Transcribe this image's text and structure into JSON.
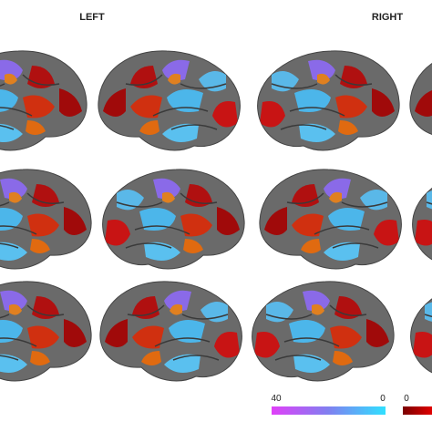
{
  "header": {
    "left": "LEFT",
    "right": "RIGHT"
  },
  "colorbars": [
    {
      "start_label": "40",
      "end_label": "0"
    },
    {
      "start_label": "0"
    }
  ]
}
